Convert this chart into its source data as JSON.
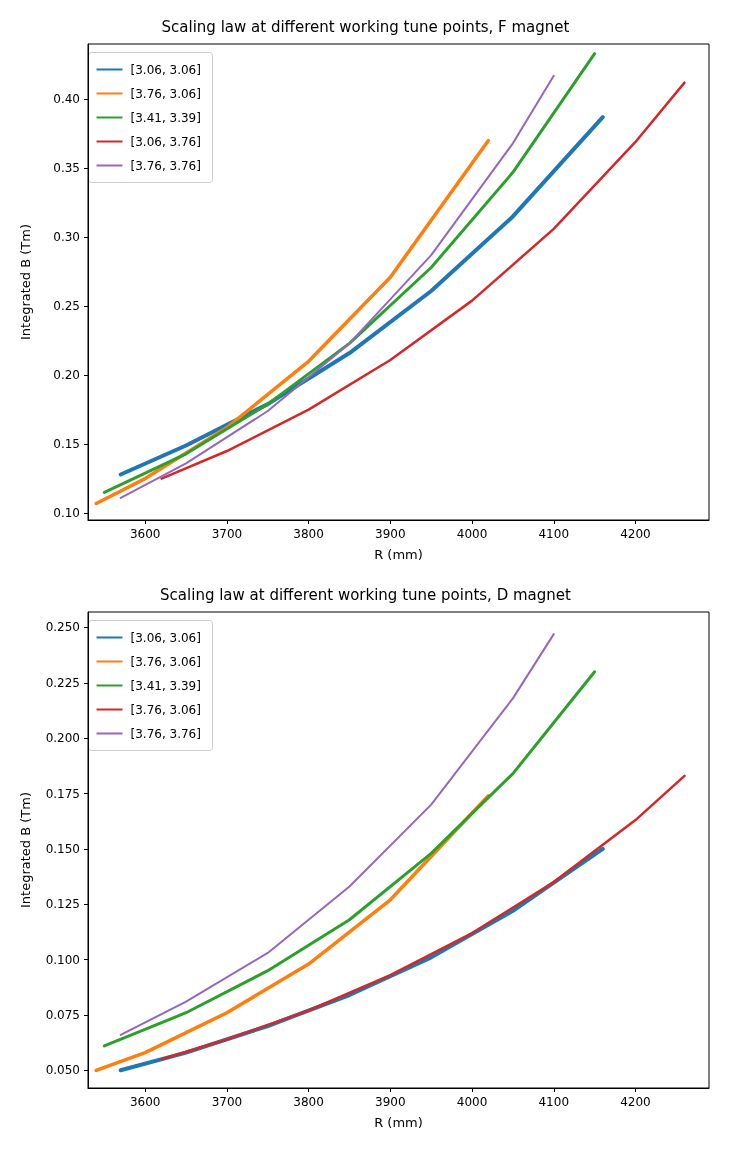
{
  "chart_data": [
    {
      "type": "line",
      "title": "Scaling law at different working tune points, F magnet",
      "xlabel": "R (mm)",
      "ylabel": "Integrated B (Tm)",
      "xlim": [
        3530,
        4290
      ],
      "ylim": [
        0.095,
        0.44
      ],
      "xticks": [
        3600,
        3700,
        3800,
        3900,
        4000,
        4100,
        4200
      ],
      "yticks": [
        {
          "value": 0.1,
          "label": "0.10"
        },
        0.15,
        {
          "value": 0.2,
          "label": "0.20"
        },
        0.25,
        {
          "value": 0.3,
          "label": "0.30"
        },
        0.35,
        {
          "value": 0.4,
          "label": "0.40"
        }
      ],
      "grid": false,
      "legend": "top left",
      "marker": "none",
      "line_style": "solid",
      "series": [
        {
          "name": "[3.06, 3.06]",
          "color": "#1f77b4",
          "x": [
            3570,
            3650,
            3750,
            3850,
            3950,
            4050,
            4160
          ],
          "values": [
            0.128,
            0.149,
            0.179,
            0.216,
            0.261,
            0.315,
            0.387
          ]
        },
        {
          "name": "[3.76, 3.06]",
          "color": "#ff7f0e",
          "x": [
            3540,
            3600,
            3700,
            3800,
            3900,
            4020
          ],
          "values": [
            0.107,
            0.125,
            0.162,
            0.21,
            0.271,
            0.37
          ]
        },
        {
          "name": "[3.41, 3.39]",
          "color": "#2ca02c",
          "x": [
            3550,
            3650,
            3750,
            3850,
            3950,
            4050,
            4150
          ],
          "values": [
            0.115,
            0.143,
            0.179,
            0.223,
            0.278,
            0.347,
            0.433
          ]
        },
        {
          "name": "[3.06, 3.76]",
          "color": "#d62728",
          "x": [
            3620,
            3700,
            3800,
            3900,
            4000,
            4100,
            4200,
            4260
          ],
          "values": [
            0.125,
            0.145,
            0.175,
            0.211,
            0.254,
            0.306,
            0.369,
            0.412
          ]
        },
        {
          "name": "[3.76, 3.76]",
          "color": "#9467bd",
          "x": [
            3570,
            3650,
            3750,
            3850,
            3950,
            4050,
            4100
          ],
          "values": [
            0.111,
            0.136,
            0.174,
            0.223,
            0.287,
            0.368,
            0.417
          ]
        }
      ]
    },
    {
      "type": "line",
      "title": "Scaling law at different working tune points, D magnet",
      "xlabel": "R (mm)",
      "ylabel": "Integrated B (Tm)",
      "xlim": [
        3530,
        4290
      ],
      "ylim": [
        0.042,
        0.257
      ],
      "xticks": [
        3600,
        3700,
        3800,
        3900,
        4000,
        4100,
        4200
      ],
      "yticks": [
        {
          "value": 0.05,
          "label": "0.050"
        },
        0.075,
        {
          "value": 0.1,
          "label": "0.100"
        },
        0.125,
        {
          "value": 0.15,
          "label": "0.150"
        },
        0.175,
        {
          "value": 0.2,
          "label": "0.200"
        },
        0.225,
        {
          "value": 0.25,
          "label": "0.250"
        }
      ],
      "grid": false,
      "legend": "top left",
      "marker": "none",
      "line_style": "solid",
      "series": [
        {
          "name": "[3.06, 3.06]",
          "color": "#1f77b4",
          "x": [
            3570,
            3650,
            3750,
            3850,
            3950,
            4050,
            4160
          ],
          "values": [
            0.05,
            0.058,
            0.07,
            0.084,
            0.101,
            0.122,
            0.15
          ]
        },
        {
          "name": "[3.76, 3.06]",
          "color": "#ff7f0e",
          "x": [
            3540,
            3600,
            3700,
            3800,
            3900,
            4020
          ],
          "values": [
            0.05,
            0.058,
            0.076,
            0.098,
            0.127,
            0.174
          ]
        },
        {
          "name": "[3.41, 3.39]",
          "color": "#2ca02c",
          "x": [
            3550,
            3650,
            3750,
            3850,
            3950,
            4050,
            4150
          ],
          "values": [
            0.061,
            0.076,
            0.095,
            0.118,
            0.148,
            0.184,
            0.23
          ]
        },
        {
          "name": "[3.76, 3.06]",
          "color": "#d62728",
          "x": [
            3620,
            3700,
            3800,
            3900,
            4000,
            4100,
            4200,
            4260
          ],
          "values": [
            0.055,
            0.064,
            0.077,
            0.093,
            0.112,
            0.135,
            0.163,
            0.183
          ]
        },
        {
          "name": "[3.76, 3.76]",
          "color": "#9467bd",
          "x": [
            3570,
            3650,
            3750,
            3850,
            3950,
            4050,
            4100
          ],
          "values": [
            0.066,
            0.081,
            0.103,
            0.133,
            0.17,
            0.218,
            0.247
          ]
        }
      ]
    }
  ]
}
